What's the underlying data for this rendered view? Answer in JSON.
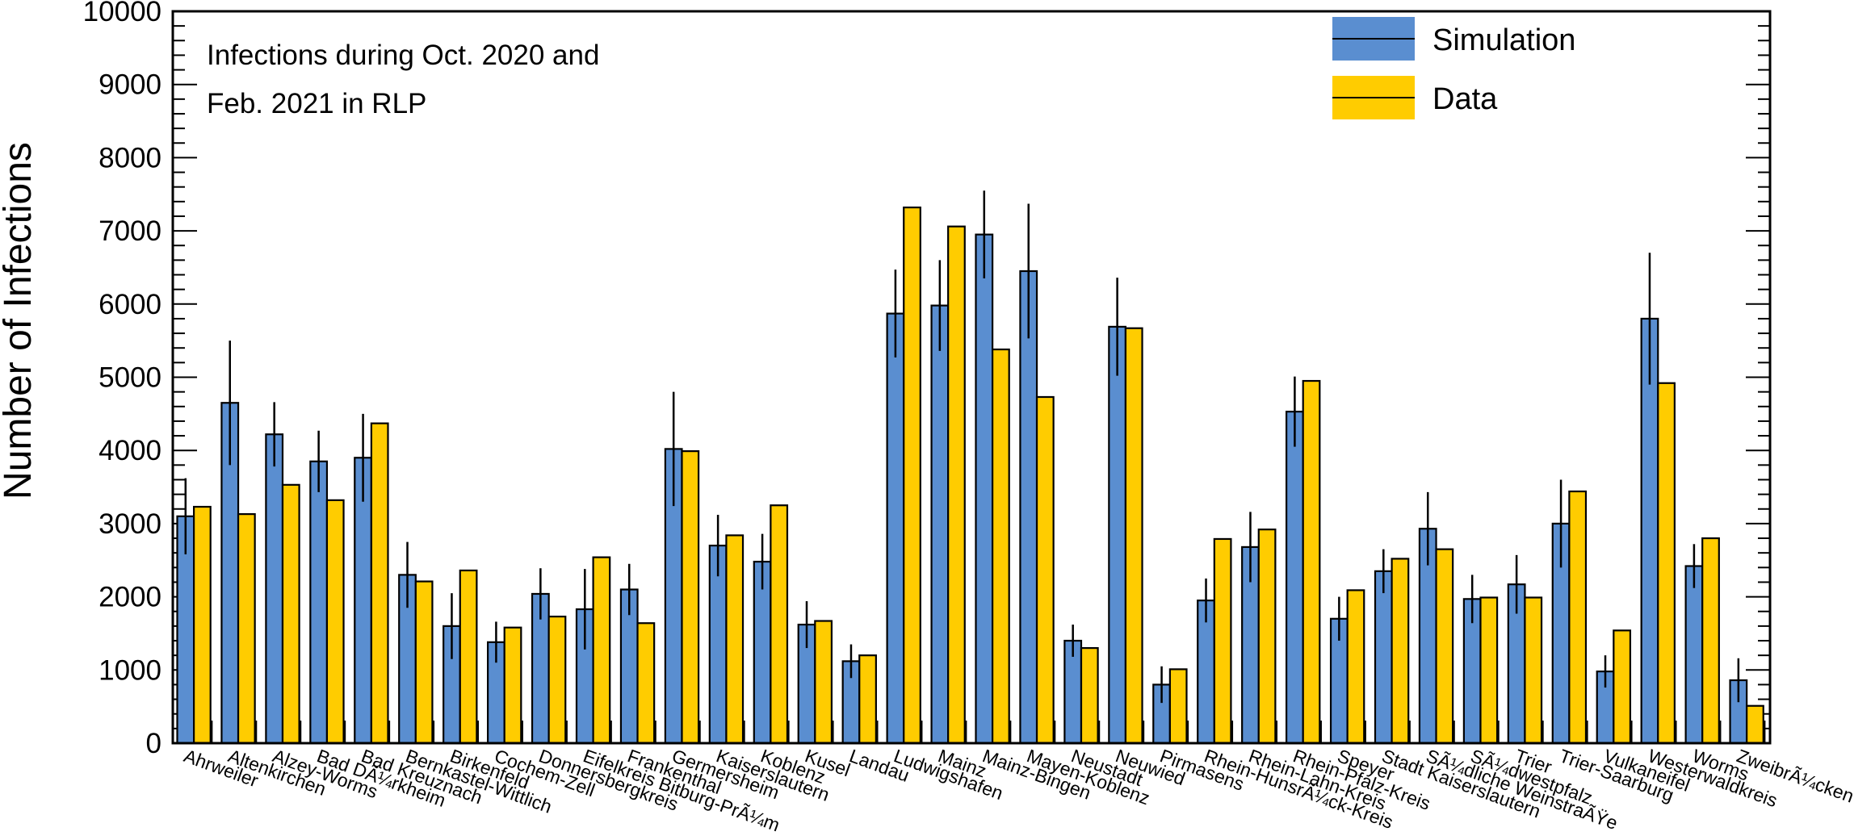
{
  "chart_data": {
    "type": "bar",
    "ylabel": "Number of Infections",
    "xlabel": "",
    "ylim": [
      0,
      10000
    ],
    "yticks": [
      "0",
      "1000",
      "2000",
      "3000",
      "4000",
      "5000",
      "6000",
      "7000",
      "8000",
      "9000",
      "10000"
    ],
    "annotation": [
      "Infections during Oct. 2020 and",
      "Feb. 2021 in RLP"
    ],
    "legend_position": "top-right",
    "categories": [
      "Ahrweiler",
      "Altenkirchen",
      "Alzey-Worms",
      "Bad DÃ¼rkheim",
      "Bad Kreuznach",
      "Bernkastel-Wittlich",
      "Birkenfeld",
      "Cochem-Zell",
      "Donnersbergkreis",
      "Eifelkreis Bitburg-PrÃ¼m",
      "Frankenthal",
      "Germersheim",
      "Kaiserslautern",
      "Koblenz",
      "Kusel",
      "Landau",
      "Ludwigshafen",
      "Mainz",
      "Mainz-Bingen",
      "Mayen-Koblenz",
      "Neustadt",
      "Neuwied",
      "Pirmasens",
      "Rhein-HunsrÃ¼ck-Kreis",
      "Rhein-Lahn-Kreis",
      "Rhein-Pfalz-Kreis",
      "Speyer",
      "Stadt Kaiserslautern",
      "SÃ¼dliche WeinstraÃŸe",
      "SÃ¼dwestpfalz",
      "Trier",
      "Trier-Saarburg",
      "Vulkaneifel",
      "Westerwaldkreis",
      "Worms",
      "ZweibrÃ¼cken"
    ],
    "series": [
      {
        "name": "Simulation",
        "color": "#5a8ed0",
        "values": [
          3100,
          4650,
          4220,
          3850,
          3900,
          2300,
          1600,
          1380,
          2040,
          1830,
          2100,
          4020,
          2700,
          2480,
          1620,
          1120,
          5870,
          5980,
          6950,
          6450,
          1400,
          5690,
          800,
          1950,
          2680,
          4530,
          1700,
          2350,
          2930,
          1970,
          2170,
          3000,
          980,
          5800,
          2420,
          860
        ],
        "errors": [
          520,
          850,
          440,
          420,
          600,
          450,
          450,
          280,
          350,
          550,
          350,
          780,
          420,
          380,
          320,
          230,
          600,
          620,
          600,
          920,
          220,
          670,
          250,
          300,
          480,
          480,
          300,
          300,
          500,
          330,
          400,
          600,
          220,
          900,
          300,
          300
        ]
      },
      {
        "name": "Data",
        "color": "#ffcc00",
        "values": [
          3230,
          3130,
          3530,
          3320,
          4370,
          2210,
          2360,
          1580,
          1730,
          2540,
          1640,
          3990,
          2840,
          3250,
          1670,
          1200,
          7320,
          7060,
          5380,
          4730,
          1300,
          5670,
          1010,
          2790,
          2920,
          4950,
          2090,
          2520,
          2650,
          1990,
          1990,
          3440,
          1540,
          4920,
          2800,
          510
        ]
      }
    ]
  }
}
